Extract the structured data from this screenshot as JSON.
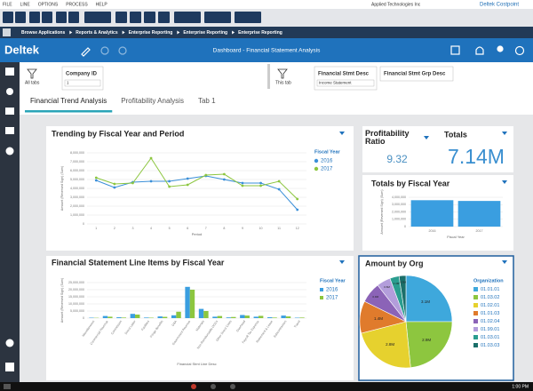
{
  "menu": [
    "FILE",
    "LINE",
    "OPTIONS",
    "PROCESS",
    "HELP"
  ],
  "company": "Applied Technologies Inc",
  "product": "Deltek Costpoint",
  "breadcrumb": [
    "Browse Applications",
    "Reports & Analytics",
    "Enterprise Reporting",
    "Enterprise Reporting",
    "Enterprise Reporting"
  ],
  "header": {
    "logo": "Deltek",
    "title": "Dashboard - Financial Statement Analysis"
  },
  "filters": {
    "all_tabs": "All tabs",
    "company_id": {
      "label": "Company ID",
      "value": "1"
    },
    "this_tab": "This tab",
    "stmt_desc": {
      "label": "Financial Stmt Desc",
      "value": "Income Statement"
    },
    "stmt_grp_desc": {
      "label": "Financial Stmt Grp Desc"
    }
  },
  "tabs": [
    "Financial Trend Analysis",
    "Profitability Analysis",
    "Tab 1"
  ],
  "kpis": [
    {
      "title": "Profitability Ratio",
      "value": "9.32"
    },
    {
      "title": "Totals",
      "value": "7.14M"
    }
  ],
  "chart_data": [
    {
      "type": "line",
      "title": "Trending by Fiscal Year and Period",
      "xlabel": "Period",
      "ylabel": "Amount (Reversed Sign) (Sum)",
      "legend_title": "Fiscal Year",
      "categories": [
        "1",
        "2",
        "3",
        "4",
        "5",
        "6",
        "7",
        "8",
        "9",
        "10",
        "11",
        "12"
      ],
      "series": [
        {
          "name": "2016",
          "color": "#3a8fd8",
          "values": [
            4900000,
            4100000,
            4700000,
            4800000,
            4800000,
            5100000,
            5400000,
            5000000,
            4600000,
            4600000,
            3900000,
            1600000
          ]
        },
        {
          "name": "2017",
          "color": "#8cc63f",
          "values": [
            5200000,
            4500000,
            4600000,
            7400000,
            4200000,
            4400000,
            5500000,
            5600000,
            4300000,
            4300000,
            4800000,
            2800000
          ]
        }
      ],
      "ylim": [
        0,
        8000000
      ],
      "yticks": [
        {
          "value": 0,
          "label": "0"
        },
        {
          "value": 1000000,
          "label": "1,000,000"
        },
        {
          "value": 2000000,
          "label": "2,000,000"
        },
        {
          "value": 3000000,
          "label": "3,000,000"
        },
        {
          "value": 4000000,
          "label": "4,000,000"
        },
        {
          "value": 5000000,
          "label": "5,000,000"
        },
        {
          "value": 6000000,
          "label": "6,000,000"
        },
        {
          "value": 7000000,
          "label": "7,000,000"
        },
        {
          "value": 8000000,
          "label": "8,000,000"
        }
      ],
      "grid": true
    },
    {
      "type": "bar",
      "title": "Totals by Fiscal Year",
      "xlabel": "Fiscal Year",
      "ylabel": "Amount (Reversed Sign) (Sum)",
      "categories": [
        "2016",
        "2017"
      ],
      "values": [
        3600000,
        3500000
      ],
      "color": "#3a9ee0",
      "ylim": [
        0,
        4000000
      ],
      "yticks": [
        {
          "value": 0,
          "label": "0"
        },
        {
          "value": 1000000,
          "label": "1,000,000"
        },
        {
          "value": 2000000,
          "label": "2,000,000"
        },
        {
          "value": 3000000,
          "label": "3,000,000"
        },
        {
          "value": 4000000,
          "label": "4,000,000"
        }
      ],
      "grid": true
    },
    {
      "type": "grouped_bar",
      "title": "Financial Statement Line Items by Fiscal Year",
      "xlabel": "Financial Stmt Line Desc",
      "ylabel": "Amount (Reversed Sign) (Sum)",
      "legend_title": "Fiscal Year",
      "categories": [
        "Miscellaneous",
        "Commercial Revenue",
        "Commission",
        "Direct Labor",
        "Facilities",
        "Fringe Benefits",
        "G&A",
        "Government Revenue",
        "Materials",
        "Non-Reimbursable ODCs",
        "Other Direct Costs",
        "Overhead",
        "Payroll Tax Expense",
        "Retirement & Leave",
        "Subcontractors",
        "Travel"
      ],
      "series": [
        {
          "name": "2016",
          "color": "#3a9ee0",
          "values": [
            300000,
            1500000,
            600000,
            3000000,
            400000,
            1200000,
            2000000,
            22000000,
            6500000,
            1000000,
            500000,
            2200000,
            1000000,
            600000,
            1800000,
            300000
          ]
        },
        {
          "name": "2017",
          "color": "#8cc63f",
          "values": [
            200000,
            1000000,
            400000,
            2500000,
            300000,
            900000,
            4500000,
            20000000,
            5000000,
            1500000,
            800000,
            1800000,
            1600000,
            400000,
            1200000,
            400000
          ]
        }
      ],
      "ylim": [
        0,
        25000000
      ],
      "yticks": [
        {
          "value": 0,
          "label": "0"
        },
        {
          "value": 5000000,
          "label": "5,000,000"
        },
        {
          "value": 10000000,
          "label": "10,000,000"
        },
        {
          "value": 15000000,
          "label": "15,000,000"
        },
        {
          "value": 20000000,
          "label": "20,000,000"
        },
        {
          "value": 25000000,
          "label": "25,000,000"
        }
      ],
      "grid": true
    },
    {
      "type": "pie",
      "title": "Amount by Org",
      "legend_title": "Organization",
      "categories": [
        "01.01.01",
        "01.03.02",
        "01.02.01",
        "01.01.03",
        "01.02.04",
        "01.99.01",
        "01.03.01",
        "01.03.03"
      ],
      "values": [
        3.1,
        2.9,
        2.8,
        1.4,
        0.9,
        0.6,
        0.4,
        0.3
      ],
      "value_labels": [
        "3.1M",
        "2.9M",
        "2.8M",
        "1.4M",
        "0.9M",
        "0.6M",
        "0.4M",
        "0.3M"
      ],
      "colors": [
        "#3ea8dc",
        "#8dc63f",
        "#e6d12e",
        "#e07b2c",
        "#8b63b7",
        "#b39ddb",
        "#2a9d8f",
        "#1b6f6a"
      ]
    }
  ],
  "taskbar": {
    "time": "1:00 PM"
  }
}
